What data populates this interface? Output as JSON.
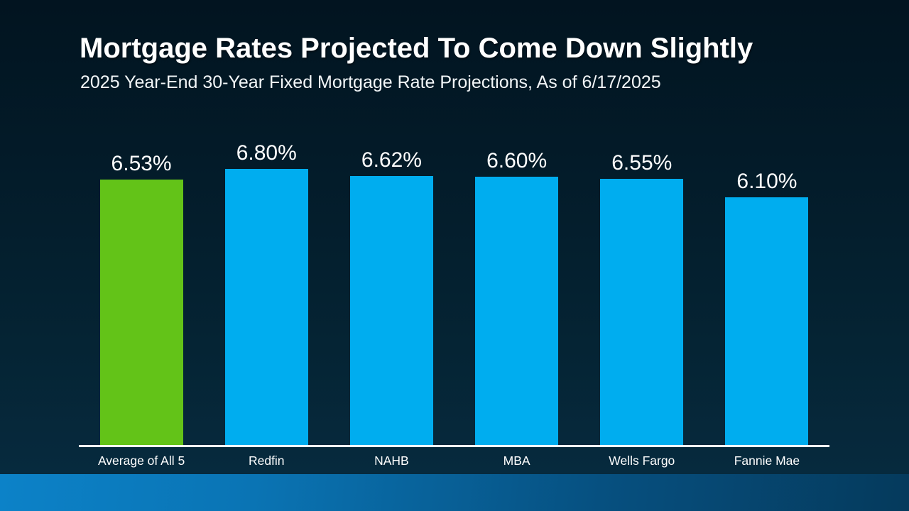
{
  "slide": {
    "title": "Mortgage Rates Projected To Come Down Slightly",
    "subtitle": "2025 Year-End 30-Year Fixed Mortgage Rate Projections, As of 6/17/2025"
  },
  "chart_data": {
    "type": "bar",
    "title": "Mortgage Rates Projected To Come Down Slightly",
    "subtitle": "2025 Year-End 30-Year Fixed Mortgage Rate Projections, As of 6/17/2025",
    "categories": [
      "Average of All 5",
      "Redfin",
      "NAHB",
      "MBA",
      "Wells Fargo",
      "Fannie Mae"
    ],
    "values": [
      6.53,
      6.8,
      6.62,
      6.6,
      6.55,
      6.1
    ],
    "value_labels": [
      "6.53%",
      "6.80%",
      "6.62%",
      "6.60%",
      "6.55%",
      "6.10%"
    ],
    "bar_colors": [
      "#63C318",
      "#00ADEF",
      "#00ADEF",
      "#00ADEF",
      "#00ADEF",
      "#00ADEF"
    ],
    "highlight_index": 0,
    "xlabel": "",
    "ylabel": "",
    "ylim": [
      0,
      6.8
    ],
    "grid": false,
    "legend": false,
    "value_label_position": "above-bar",
    "axis_line_color": "#FFFFFF"
  },
  "style": {
    "background_top": "#021420",
    "background_bottom": "#062B3F",
    "bar_blue": "#00ADEF",
    "bar_green": "#63C318",
    "text_color": "#FFFFFF",
    "axis_color": "#FFFFFF",
    "footer_gradient_left": "#0C82C8",
    "footer_gradient_right": "#053A5C"
  }
}
